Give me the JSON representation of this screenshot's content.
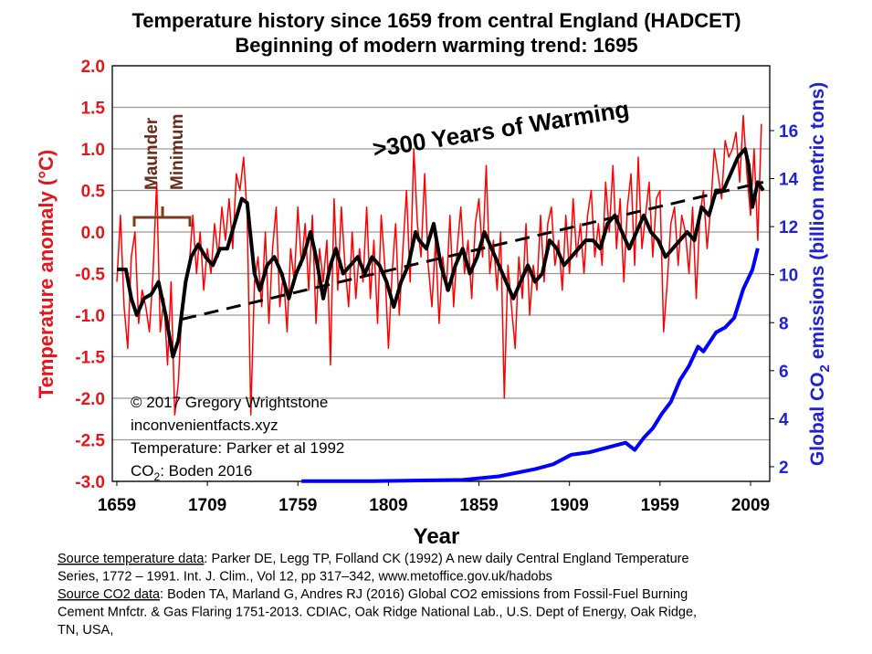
{
  "chart_data": {
    "type": "line",
    "title": [
      "Temperature history since 1659 from central England (HADCET)",
      "Beginning of modern warming trend: 1695"
    ],
    "xlabel": "Year",
    "ylabel": "Temperature anomaly (°C)",
    "y2label": [
      "Global CO",
      "2",
      " emissions (billion metric tons)"
    ],
    "xlim": [
      1656.5,
      2019.6
    ],
    "xticks": [
      1659,
      1709,
      1759,
      1809,
      1859,
      1909,
      1959,
      2009
    ],
    "ylim": [
      -3,
      2
    ],
    "yticks": [
      {
        "value": 2,
        "label": "2.0"
      },
      1.5,
      {
        "value": 1,
        "label": "1.0"
      },
      0.5,
      {
        "value": 0,
        "label": "0.0"
      },
      -0.5,
      {
        "value": -1,
        "label": "-1.0"
      },
      -1.5,
      {
        "value": -2,
        "label": "-2.0"
      },
      -2.5,
      {
        "value": -3,
        "label": "-3.0"
      }
    ],
    "y2lim": [
      1.39,
      18.7
    ],
    "y2ticks": [
      2,
      4,
      6,
      8,
      10,
      12,
      14,
      16
    ],
    "grid": true,
    "ycolor": "#e8141b",
    "y2color": "#1f22d8",
    "series": [
      {
        "color": "#ff0000",
        "linewidth": 1.5,
        "x": [
          1659,
          1661,
          1663,
          1665,
          1667,
          1669,
          1671,
          1673,
          1675,
          1677,
          1679,
          1681,
          1683,
          1685,
          1687,
          1689,
          1691,
          1693,
          1695,
          1697,
          1699,
          1701,
          1703,
          1705,
          1707,
          1709,
          1711,
          1713,
          1715,
          1717,
          1719,
          1721,
          1723,
          1725,
          1727,
          1729,
          1731,
          1733,
          1735,
          1737,
          1739,
          1741,
          1743,
          1745,
          1747,
          1749,
          1751,
          1753,
          1755,
          1757,
          1759,
          1761,
          1763,
          1765,
          1767,
          1769,
          1771,
          1773,
          1775,
          1777,
          1779,
          1781,
          1783,
          1785,
          1787,
          1789,
          1791,
          1793,
          1795,
          1797,
          1799,
          1801,
          1803,
          1805,
          1807,
          1809,
          1811,
          1813,
          1815,
          1817,
          1819,
          1821,
          1823,
          1825,
          1827,
          1829,
          1831,
          1833,
          1835,
          1837,
          1839,
          1841,
          1843,
          1845,
          1847,
          1849,
          1851,
          1853,
          1855,
          1857,
          1859,
          1861,
          1863,
          1865,
          1867,
          1869,
          1871,
          1873,
          1875,
          1877,
          1879,
          1881,
          1883,
          1885,
          1887,
          1889,
          1891,
          1893,
          1895,
          1897,
          1899,
          1901,
          1903,
          1905,
          1907,
          1909,
          1911,
          1913,
          1915,
          1917,
          1919,
          1921,
          1923,
          1925,
          1927,
          1929,
          1931,
          1933,
          1935,
          1937,
          1939,
          1941,
          1943,
          1945,
          1947,
          1949,
          1951,
          1953,
          1955,
          1957,
          1959,
          1961,
          1963,
          1965,
          1967,
          1969,
          1971,
          1973,
          1975,
          1977,
          1979,
          1981,
          1983,
          1985,
          1987,
          1989,
          1991,
          1993,
          1995,
          1997,
          1999,
          2001,
          2003,
          2005,
          2007,
          2009,
          2011,
          2013,
          2015
        ],
        "values": [
          -0.6,
          0.2,
          -0.9,
          -1.4,
          -0.3,
          0.0,
          -1.1,
          -0.7,
          -0.9,
          -1.2,
          -0.5,
          0.6,
          -1.2,
          -0.8,
          -1.6,
          -0.6,
          -2.2,
          -1.8,
          -0.9,
          -0.7,
          -0.4,
          0.2,
          -0.5,
          0.0,
          -0.7,
          -0.2,
          -0.5,
          0.1,
          -0.3,
          0.3,
          -0.1,
          0.4,
          -0.2,
          0.7,
          0.5,
          0.9,
          0.2,
          -2.2,
          -0.6,
          -0.3,
          -0.9,
          0.0,
          -1.1,
          -0.2,
          0.3,
          -0.9,
          -0.5,
          -1.2,
          -0.2,
          -0.6,
          0.3,
          -0.4,
          0.1,
          -0.7,
          0.2,
          -1.1,
          -0.2,
          -0.6,
          -0.1,
          -1.6,
          0.4,
          -0.7,
          0.3,
          -0.4,
          -0.9,
          0.0,
          -0.8,
          -0.2,
          -0.6,
          0.3,
          -0.8,
          -0.1,
          -1.1,
          0.2,
          -0.4,
          -1.4,
          -0.5,
          0.1,
          -1.0,
          -0.2,
          0.5,
          -0.6,
          1.0,
          0.1,
          -0.3,
          0.7,
          -0.4,
          -0.9,
          -0.1,
          -1.1,
          -0.3,
          -0.7,
          0.2,
          -0.9,
          -0.2,
          0.3,
          -0.5,
          -0.1,
          -0.8,
          0.1,
          0.4,
          -0.3,
          0.8,
          -0.5,
          -0.1,
          -0.7,
          0.0,
          -2.0,
          -0.4,
          -0.9,
          -1.4,
          -0.3,
          -0.8,
          0.1,
          -1.0,
          -0.4,
          -0.7,
          0.2,
          -0.6,
          0.1,
          0.3,
          -0.4,
          -0.1,
          -0.7,
          0.2,
          -0.5,
          0.4,
          -0.3,
          0.1,
          -0.5,
          0.2,
          0.5,
          -0.3,
          0.1,
          -0.4,
          0.6,
          0.0,
          0.8,
          -0.2,
          0.4,
          -0.6,
          0.3,
          0.7,
          -0.4,
          0.9,
          -0.2,
          0.2,
          0.6,
          -0.3,
          0.4,
          0.5,
          -1.2,
          -0.6,
          0.1,
          0.3,
          -0.4,
          0.2,
          0.0,
          -0.5,
          0.3,
          -0.8,
          0.2,
          0.5,
          -0.2,
          0.3,
          1.0,
          0.7,
          0.4,
          1.1,
          0.9,
          1.0,
          1.2,
          0.6,
          1.4,
          0.7,
          0.2,
          1.0,
          -0.1,
          1.3
        ]
      },
      {
        "color": "#000000",
        "linewidth": 4,
        "x": [
          1659,
          1664,
          1667,
          1670,
          1674,
          1678,
          1682,
          1686,
          1690,
          1693,
          1697,
          1700,
          1704,
          1708,
          1712,
          1716,
          1720,
          1724,
          1728,
          1731,
          1735,
          1738,
          1742,
          1746,
          1750,
          1754,
          1758,
          1762,
          1766,
          1769,
          1773,
          1777,
          1780,
          1784,
          1788,
          1792,
          1796,
          1800,
          1804,
          1808,
          1812,
          1816,
          1820,
          1824,
          1826,
          1830,
          1834,
          1838,
          1842,
          1846,
          1850,
          1854,
          1858,
          1862,
          1866,
          1870,
          1874,
          1878,
          1882,
          1886,
          1890,
          1894,
          1898,
          1902,
          1906,
          1910,
          1914,
          1918,
          1922,
          1926,
          1930,
          1934,
          1938,
          1942,
          1946,
          1950,
          1954,
          1958,
          1962,
          1966,
          1970,
          1974,
          1978,
          1982,
          1986,
          1990,
          1994,
          1998,
          2002,
          2006,
          2008,
          2010,
          2013,
          2016
        ],
        "values": [
          -0.45,
          -0.45,
          -0.8,
          -1.0,
          -0.8,
          -0.75,
          -0.6,
          -1.0,
          -1.5,
          -1.3,
          -0.6,
          -0.3,
          -0.15,
          -0.3,
          -0.4,
          -0.2,
          -0.2,
          0.1,
          0.4,
          0.35,
          -0.5,
          -0.7,
          -0.4,
          -0.3,
          -0.5,
          -0.8,
          -0.5,
          -0.3,
          0.0,
          -0.3,
          -0.8,
          -0.4,
          -0.2,
          -0.5,
          -0.4,
          -0.3,
          -0.5,
          -0.3,
          -0.4,
          -0.6,
          -0.9,
          -0.6,
          -0.4,
          0.0,
          -0.1,
          -0.2,
          0.1,
          -0.4,
          -0.7,
          -0.4,
          -0.2,
          -0.5,
          -0.3,
          0.0,
          -0.2,
          -0.4,
          -0.6,
          -0.8,
          -0.6,
          -0.4,
          -0.6,
          -0.5,
          -0.1,
          -0.2,
          -0.4,
          -0.3,
          -0.2,
          -0.1,
          -0.1,
          -0.2,
          0.1,
          0.2,
          0.0,
          -0.2,
          0.0,
          0.2,
          0.0,
          -0.1,
          -0.3,
          -0.2,
          -0.1,
          0.0,
          -0.1,
          0.3,
          0.2,
          0.5,
          0.5,
          0.7,
          0.9,
          1.0,
          0.8,
          0.3,
          0.6,
          0.5
        ]
      },
      {
        "color": "#000000",
        "linewidth": 3,
        "dash": true,
        "x": [
          1695,
          2016
        ],
        "values": [
          -1.05,
          0.6
        ]
      },
      {
        "color": "#0000ff",
        "linewidth": 4,
        "axis": "y2",
        "x": [
          1761,
          1800,
          1850,
          1870,
          1890,
          1900,
          1910,
          1920,
          1930,
          1940,
          1945,
          1950,
          1955,
          1960,
          1965,
          1970,
          1975,
          1980,
          1983,
          1990,
          1995,
          2000,
          2005,
          2010,
          2013
        ],
        "values": [
          1.4,
          1.4,
          1.45,
          1.6,
          1.9,
          2.1,
          2.5,
          2.6,
          2.8,
          3.0,
          2.7,
          3.2,
          3.6,
          4.2,
          4.7,
          5.6,
          6.2,
          7.0,
          6.8,
          7.6,
          7.8,
          8.2,
          9.4,
          10.2,
          11.1
        ]
      }
    ],
    "annotations": {
      "maunder": [
        "Maunder",
        "Minimum"
      ],
      "warming": ">300 Years of Warming",
      "credits": [
        "© 2017 Gregory Wrightstone",
        "inconvenientfacts.xyz",
        "Temperature: Parker et al 1992"
      ],
      "co2_credit": [
        "CO",
        "2",
        ": Boden 2016"
      ]
    }
  },
  "sources": [
    [
      "Source temperature data",
      ": Parker DE, Legg TP, Folland CK (1992) A new daily Central England Temperature"
    ],
    [
      "Series, 1772 – 1991. Int. J. Clim., Vol 12, pp 317–342, www.metoffice.gov.uk/hadobs"
    ],
    [
      "Source CO2 data",
      ": Boden TA, Marland G, Andres RJ (2016) Global CO2 emissions from Fossil-Fuel Burning"
    ],
    [
      "Cement Mnfctr. & Gas Flaring 1751-2013. CDIAC, Oak Ridge National Lab., U.S. Dept of Energy, Oak Ridge,"
    ],
    [
      "TN, USA,"
    ]
  ]
}
